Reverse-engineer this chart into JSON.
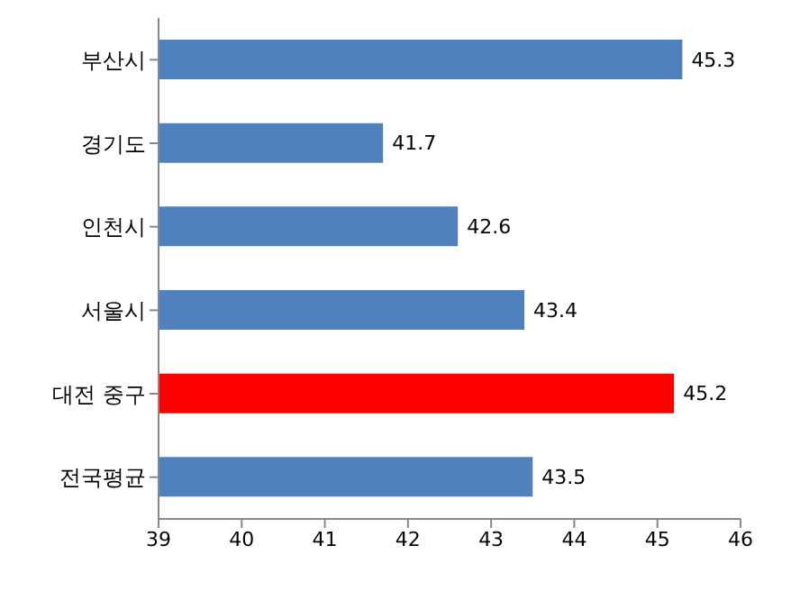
{
  "chart_data": {
    "type": "bar",
    "orientation": "horizontal",
    "categories": [
      "부산시",
      "경기도",
      "인천시",
      "서울시",
      "대전 중구",
      "전국평균"
    ],
    "values": [
      45.3,
      41.7,
      42.6,
      43.4,
      45.2,
      43.5
    ],
    "colors": [
      "#4f81bd",
      "#4f81bd",
      "#4f81bd",
      "#4f81bd",
      "#ff0000",
      "#4f81bd"
    ],
    "xlim": [
      39,
      46
    ],
    "xticks": [
      39,
      40,
      41,
      42,
      43,
      44,
      45,
      46
    ],
    "data_labels": true,
    "grid": false
  }
}
